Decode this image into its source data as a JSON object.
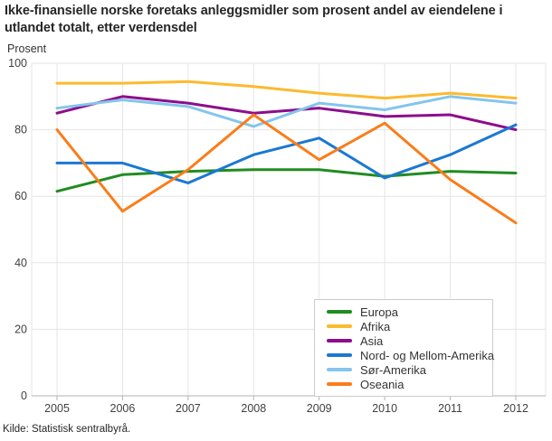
{
  "title": "Ikke-finansielle norske foretaks anleggsmidler som prosent andel av eiendelene i utlandet totalt, etter verdensdel",
  "y_axis_title": "Prosent",
  "source": "Kilde: Statistisk sentralbyrå.",
  "colors": {
    "grid": "#e5e5e5",
    "axis": "#b3b3b3",
    "tick_label": "#404040",
    "title_text": "#262626",
    "legend_border": "#cccccc"
  },
  "chart_data": {
    "type": "line",
    "title": "Ikke-finansielle norske foretaks anleggsmidler som prosent andel av eiendelene i utlandet totalt, etter verdensdel",
    "xlabel": "",
    "ylabel": "Prosent",
    "categories": [
      "2005",
      "2006",
      "2007",
      "2008",
      "2009",
      "2010",
      "2011",
      "2012"
    ],
    "yticks": [
      0,
      20,
      40,
      60,
      80,
      100
    ],
    "ylim": [
      0,
      100
    ],
    "grid": true,
    "legend_position": "inside-bottom-right",
    "series": [
      {
        "name": "Europa",
        "color": "#218c21",
        "values": [
          61.5,
          66.5,
          67.5,
          68,
          68,
          66,
          67.5,
          67
        ]
      },
      {
        "name": "Afrika",
        "color": "#fcba2d",
        "values": [
          94,
          94,
          94.5,
          93,
          91,
          89.5,
          91,
          89.5
        ]
      },
      {
        "name": "Asia",
        "color": "#8c0e8c",
        "values": [
          85,
          90,
          88,
          85,
          86.5,
          84,
          84.5,
          80
        ]
      },
      {
        "name": "Nord- og Mellom-Amerika",
        "color": "#1b78d2",
        "values": [
          70,
          70,
          64,
          72.5,
          77.5,
          65.5,
          72.5,
          81.5
        ]
      },
      {
        "name": "Sør-Amerika",
        "color": "#84c5ec",
        "values": [
          86.5,
          89,
          87,
          81,
          88,
          86,
          90,
          88
        ]
      },
      {
        "name": "Oseania",
        "color": "#fa7d19",
        "values": [
          80,
          55.5,
          68,
          84.5,
          71,
          82,
          65,
          52
        ]
      }
    ]
  }
}
